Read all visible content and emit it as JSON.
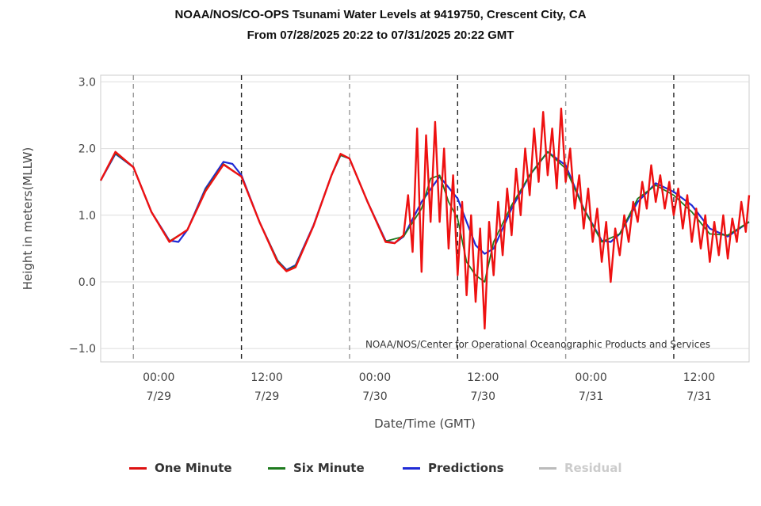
{
  "header": {
    "title": "NOAA/NOS/CO-OPS Tsunami Water Levels at 9419750, Crescent City, CA",
    "subtitle": "From 07/28/2025 20:22 to 07/31/2025 20:22 GMT"
  },
  "chart_data": {
    "type": "line",
    "title": "NOAA/NOS/CO-OPS Tsunami Water Levels at 9419750, Crescent City, CA",
    "subtitle": "From 07/28/2025 20:22 to 07/31/2025 20:22 GMT",
    "xlabel": "Date/Time (GMT)",
    "ylabel": "Height in meters(MLLW)",
    "x_range": [
      "07/28/2025 20:22",
      "07/31/2025 20:22"
    ],
    "ylim": [
      -1.2,
      3.1
    ],
    "y_ticks": [
      {
        "value": 3.0,
        "label": "3.0"
      },
      {
        "value": 2.0,
        "label": "2.0"
      },
      {
        "value": 1.0,
        "label": "1.0"
      },
      {
        "value": 0.0,
        "label": "0.0"
      },
      {
        "value": -1.0,
        "label": "−1.0"
      }
    ],
    "x_ticks": [
      {
        "time": "07/29/2025 00:00",
        "line1": "00:00",
        "line2": "7/29"
      },
      {
        "time": "07/29/2025 12:00",
        "line1": "12:00",
        "line2": "7/29"
      },
      {
        "time": "07/30/2025 00:00",
        "line1": "00:00",
        "line2": "7/30"
      },
      {
        "time": "07/30/2025 12:00",
        "line1": "12:00",
        "line2": "7/30"
      },
      {
        "time": "07/31/2025 00:00",
        "line1": "00:00",
        "line2": "7/31"
      },
      {
        "time": "07/31/2025 12:00",
        "line1": "12:00",
        "line2": "7/31"
      }
    ],
    "grid": true,
    "credit": "NOAA/NOS/Center for Operational Oceanographic Products and Services",
    "legend_position": "bottom",
    "series": [
      {
        "name": "Predictions",
        "color": "#1f2bd6",
        "visible": true,
        "points": [
          [
            "07/28/2025 20:22",
            1.52
          ],
          [
            "07/28/2025 22:00",
            1.92
          ],
          [
            "07/29/2025 00:00",
            1.72
          ],
          [
            "07/29/2025 02:00",
            1.05
          ],
          [
            "07/29/2025 04:00",
            0.62
          ],
          [
            "07/29/2025 05:00",
            0.6
          ],
          [
            "07/29/2025 06:00",
            0.78
          ],
          [
            "07/29/2025 08:00",
            1.4
          ],
          [
            "07/29/2025 10:00",
            1.8
          ],
          [
            "07/29/2025 11:00",
            1.77
          ],
          [
            "07/29/2025 12:00",
            1.6
          ],
          [
            "07/29/2025 14:00",
            0.9
          ],
          [
            "07/29/2025 16:00",
            0.32
          ],
          [
            "07/29/2025 17:00",
            0.18
          ],
          [
            "07/29/2025 18:00",
            0.25
          ],
          [
            "07/29/2025 20:00",
            0.85
          ],
          [
            "07/29/2025 22:00",
            1.6
          ],
          [
            "07/29/2025 23:00",
            1.9
          ],
          [
            "07/30/2025 00:00",
            1.85
          ],
          [
            "07/30/2025 02:00",
            1.2
          ],
          [
            "07/30/2025 04:00",
            0.62
          ],
          [
            "07/30/2025 05:00",
            0.58
          ],
          [
            "07/30/2025 06:00",
            0.68
          ],
          [
            "07/30/2025 08:00",
            1.2
          ],
          [
            "07/30/2025 10:00",
            1.58
          ],
          [
            "07/30/2025 12:00",
            1.25
          ],
          [
            "07/30/2025 14:00",
            0.55
          ],
          [
            "07/30/2025 15:00",
            0.42
          ],
          [
            "07/30/2025 16:00",
            0.5
          ],
          [
            "07/30/2025 18:00",
            1.1
          ],
          [
            "07/30/2025 20:00",
            1.6
          ],
          [
            "07/30/2025 22:00",
            1.95
          ],
          [
            "07/31/2025 00:00",
            1.75
          ],
          [
            "07/31/2025 02:00",
            1.1
          ],
          [
            "07/31/2025 04:00",
            0.62
          ],
          [
            "07/31/2025 05:00",
            0.6
          ],
          [
            "07/31/2025 06:00",
            0.72
          ],
          [
            "07/31/2025 08:00",
            1.2
          ],
          [
            "07/31/2025 10:00",
            1.48
          ],
          [
            "07/31/2025 12:00",
            1.35
          ],
          [
            "07/31/2025 14:00",
            1.15
          ],
          [
            "07/31/2025 16:00",
            0.8
          ],
          [
            "07/31/2025 18:00",
            0.68
          ],
          [
            "07/31/2025 20:22",
            0.9
          ]
        ]
      },
      {
        "name": "Six Minute",
        "color": "#1e7a1e",
        "visible": true,
        "points": [
          [
            "07/28/2025 20:22",
            1.52
          ],
          [
            "07/28/2025 22:00",
            1.93
          ],
          [
            "07/29/2025 00:00",
            1.72
          ],
          [
            "07/29/2025 02:00",
            1.05
          ],
          [
            "07/29/2025 04:00",
            0.61
          ],
          [
            "07/29/2025 06:00",
            0.78
          ],
          [
            "07/29/2025 08:00",
            1.38
          ],
          [
            "07/29/2025 10:00",
            1.77
          ],
          [
            "07/29/2025 12:00",
            1.58
          ],
          [
            "07/29/2025 14:00",
            0.9
          ],
          [
            "07/29/2025 16:00",
            0.32
          ],
          [
            "07/29/2025 17:00",
            0.17
          ],
          [
            "07/29/2025 18:00",
            0.24
          ],
          [
            "07/29/2025 20:00",
            0.84
          ],
          [
            "07/29/2025 22:00",
            1.6
          ],
          [
            "07/29/2025 23:00",
            1.9
          ],
          [
            "07/30/2025 00:00",
            1.85
          ],
          [
            "07/30/2025 02:00",
            1.2
          ],
          [
            "07/30/2025 04:00",
            0.61
          ],
          [
            "07/30/2025 06:00",
            0.68
          ],
          [
            "07/30/2025 08:00",
            1.1
          ],
          [
            "07/30/2025 09:00",
            1.55
          ],
          [
            "07/30/2025 10:00",
            1.6
          ],
          [
            "07/30/2025 11:00",
            1.2
          ],
          [
            "07/30/2025 12:00",
            0.95
          ],
          [
            "07/30/2025 13:00",
            0.3
          ],
          [
            "07/30/2025 14:00",
            0.1
          ],
          [
            "07/30/2025 15:00",
            0.0
          ],
          [
            "07/30/2025 16:00",
            0.6
          ],
          [
            "07/30/2025 18:00",
            1.15
          ],
          [
            "07/30/2025 20:00",
            1.6
          ],
          [
            "07/30/2025 22:00",
            1.95
          ],
          [
            "07/31/2025 00:00",
            1.7
          ],
          [
            "07/31/2025 02:00",
            1.1
          ],
          [
            "07/31/2025 04:00",
            0.6
          ],
          [
            "07/31/2025 06:00",
            0.72
          ],
          [
            "07/31/2025 08:00",
            1.25
          ],
          [
            "07/31/2025 10:00",
            1.45
          ],
          [
            "07/31/2025 12:00",
            1.3
          ],
          [
            "07/31/2025 14:00",
            1.05
          ],
          [
            "07/31/2025 16:00",
            0.72
          ],
          [
            "07/31/2025 18:00",
            0.7
          ],
          [
            "07/31/2025 20:22",
            0.9
          ]
        ]
      },
      {
        "name": "One Minute",
        "color": "#ee1111",
        "visible": true,
        "points": [
          [
            "07/28/2025 20:22",
            1.52
          ],
          [
            "07/28/2025 22:00",
            1.95
          ],
          [
            "07/29/2025 00:00",
            1.72
          ],
          [
            "07/29/2025 02:00",
            1.05
          ],
          [
            "07/29/2025 04:00",
            0.6
          ],
          [
            "07/29/2025 06:00",
            0.78
          ],
          [
            "07/29/2025 08:00",
            1.36
          ],
          [
            "07/29/2025 10:00",
            1.76
          ],
          [
            "07/29/2025 12:00",
            1.58
          ],
          [
            "07/29/2025 14:00",
            0.9
          ],
          [
            "07/29/2025 16:00",
            0.3
          ],
          [
            "07/29/2025 17:00",
            0.16
          ],
          [
            "07/29/2025 18:00",
            0.22
          ],
          [
            "07/29/2025 20:00",
            0.84
          ],
          [
            "07/29/2025 22:00",
            1.6
          ],
          [
            "07/29/2025 23:00",
            1.92
          ],
          [
            "07/30/2025 00:00",
            1.85
          ],
          [
            "07/30/2025 02:00",
            1.2
          ],
          [
            "07/30/2025 04:00",
            0.6
          ],
          [
            "07/30/2025 05:00",
            0.58
          ],
          [
            "07/30/2025 06:00",
            0.7
          ],
          [
            "07/30/2025 06:30",
            1.3
          ],
          [
            "07/30/2025 07:00",
            0.45
          ],
          [
            "07/30/2025 07:30",
            2.3
          ],
          [
            "07/30/2025 08:00",
            0.15
          ],
          [
            "07/30/2025 08:30",
            2.2
          ],
          [
            "07/30/2025 09:00",
            0.9
          ],
          [
            "07/30/2025 09:30",
            2.4
          ],
          [
            "07/30/2025 10:00",
            0.9
          ],
          [
            "07/30/2025 10:30",
            2.0
          ],
          [
            "07/30/2025 11:00",
            0.5
          ],
          [
            "07/30/2025 11:30",
            1.6
          ],
          [
            "07/30/2025 12:00",
            0.1
          ],
          [
            "07/30/2025 12:30",
            1.2
          ],
          [
            "07/30/2025 13:00",
            -0.2
          ],
          [
            "07/30/2025 13:30",
            1.0
          ],
          [
            "07/30/2025 14:00",
            -0.3
          ],
          [
            "07/30/2025 14:30",
            0.8
          ],
          [
            "07/30/2025 15:00",
            -0.7
          ],
          [
            "07/30/2025 15:30",
            0.9
          ],
          [
            "07/30/2025 16:00",
            0.1
          ],
          [
            "07/30/2025 16:30",
            1.2
          ],
          [
            "07/30/2025 17:00",
            0.4
          ],
          [
            "07/30/2025 17:30",
            1.4
          ],
          [
            "07/30/2025 18:00",
            0.7
          ],
          [
            "07/30/2025 18:30",
            1.7
          ],
          [
            "07/30/2025 19:00",
            1.0
          ],
          [
            "07/30/2025 19:30",
            2.0
          ],
          [
            "07/30/2025 20:00",
            1.3
          ],
          [
            "07/30/2025 20:30",
            2.3
          ],
          [
            "07/30/2025 21:00",
            1.5
          ],
          [
            "07/30/2025 21:30",
            2.55
          ],
          [
            "07/30/2025 22:00",
            1.6
          ],
          [
            "07/30/2025 22:30",
            2.3
          ],
          [
            "07/30/2025 23:00",
            1.4
          ],
          [
            "07/30/2025 23:30",
            2.6
          ],
          [
            "07/31/2025 00:00",
            1.5
          ],
          [
            "07/31/2025 00:30",
            2.0
          ],
          [
            "07/31/2025 01:00",
            1.1
          ],
          [
            "07/31/2025 01:30",
            1.6
          ],
          [
            "07/31/2025 02:00",
            0.8
          ],
          [
            "07/31/2025 02:30",
            1.4
          ],
          [
            "07/31/2025 03:00",
            0.6
          ],
          [
            "07/31/2025 03:30",
            1.1
          ],
          [
            "07/31/2025 04:00",
            0.3
          ],
          [
            "07/31/2025 04:30",
            0.9
          ],
          [
            "07/31/2025 05:00",
            0.0
          ],
          [
            "07/31/2025 05:30",
            0.8
          ],
          [
            "07/31/2025 06:00",
            0.4
          ],
          [
            "07/31/2025 06:30",
            1.0
          ],
          [
            "07/31/2025 07:00",
            0.6
          ],
          [
            "07/31/2025 07:30",
            1.2
          ],
          [
            "07/31/2025 08:00",
            0.9
          ],
          [
            "07/31/2025 08:30",
            1.5
          ],
          [
            "07/31/2025 09:00",
            1.1
          ],
          [
            "07/31/2025 09:30",
            1.75
          ],
          [
            "07/31/2025 10:00",
            1.2
          ],
          [
            "07/31/2025 10:30",
            1.6
          ],
          [
            "07/31/2025 11:00",
            1.1
          ],
          [
            "07/31/2025 11:30",
            1.5
          ],
          [
            "07/31/2025 12:00",
            1.0
          ],
          [
            "07/31/2025 12:30",
            1.4
          ],
          [
            "07/31/2025 13:00",
            0.8
          ],
          [
            "07/31/2025 13:30",
            1.3
          ],
          [
            "07/31/2025 14:00",
            0.6
          ],
          [
            "07/31/2025 14:30",
            1.1
          ],
          [
            "07/31/2025 15:00",
            0.5
          ],
          [
            "07/31/2025 15:30",
            1.0
          ],
          [
            "07/31/2025 16:00",
            0.3
          ],
          [
            "07/31/2025 16:30",
            0.9
          ],
          [
            "07/31/2025 17:00",
            0.4
          ],
          [
            "07/31/2025 17:30",
            1.0
          ],
          [
            "07/31/2025 18:00",
            0.35
          ],
          [
            "07/31/2025 18:30",
            0.95
          ],
          [
            "07/31/2025 19:00",
            0.6
          ],
          [
            "07/31/2025 19:30",
            1.2
          ],
          [
            "07/31/2025 20:00",
            0.75
          ],
          [
            "07/31/2025 20:22",
            1.3
          ]
        ]
      },
      {
        "name": "Residual",
        "color": "#aaaaaa",
        "visible": false,
        "points": []
      }
    ],
    "legend_order": [
      "One Minute",
      "Six Minute",
      "Predictions",
      "Residual"
    ]
  },
  "legend": {
    "items": [
      {
        "label": "One Minute",
        "color": "#dd1111",
        "active": true
      },
      {
        "label": "Six Minute",
        "color": "#1e7a1e",
        "active": true
      },
      {
        "label": "Predictions",
        "color": "#1f2bd6",
        "active": true
      },
      {
        "label": "Residual",
        "color": "#bbbbbb",
        "active": false
      }
    ]
  }
}
